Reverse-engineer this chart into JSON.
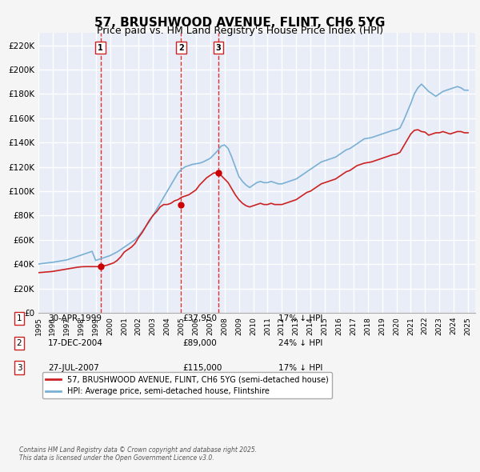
{
  "title": "57, BRUSHWOOD AVENUE, FLINT, CH6 5YG",
  "subtitle": "Price paid vs. HM Land Registry's House Price Index (HPI)",
  "title_fontsize": 11,
  "subtitle_fontsize": 9,
  "xlim": [
    1995.0,
    2025.5
  ],
  "ylim": [
    0,
    230000
  ],
  "yticks": [
    0,
    20000,
    40000,
    60000,
    80000,
    100000,
    120000,
    140000,
    160000,
    180000,
    200000,
    220000
  ],
  "ytick_labels": [
    "£0",
    "£20K",
    "£40K",
    "£60K",
    "£80K",
    "£100K",
    "£120K",
    "£140K",
    "£160K",
    "£180K",
    "£200K",
    "£220K"
  ],
  "xticks": [
    1995,
    1996,
    1997,
    1998,
    1999,
    2000,
    2001,
    2002,
    2003,
    2004,
    2005,
    2006,
    2007,
    2008,
    2009,
    2010,
    2011,
    2012,
    2013,
    2014,
    2015,
    2016,
    2017,
    2018,
    2019,
    2020,
    2021,
    2022,
    2023,
    2024,
    2025
  ],
  "background_color": "#f0f4ff",
  "plot_bg_color": "#e8edf8",
  "grid_color": "#ffffff",
  "hpi_color": "#7ab0d4",
  "price_color": "#cc2222",
  "sale_marker_color": "#cc0000",
  "vline_color": "#e03030",
  "legend_label_price": "57, BRUSHWOOD AVENUE, FLINT, CH6 5YG (semi-detached house)",
  "legend_label_hpi": "HPI: Average price, semi-detached house, Flintshire",
  "sales": [
    {
      "num": 1,
      "year": 1999.33,
      "price": 37950,
      "label": "1"
    },
    {
      "num": 2,
      "year": 2004.96,
      "price": 89000,
      "label": "2"
    },
    {
      "num": 3,
      "year": 2007.56,
      "price": 115000,
      "label": "3"
    }
  ],
  "table_rows": [
    {
      "num": "1",
      "date": "30-APR-1999",
      "price": "£37,950",
      "hpi": "17% ↓ HPI"
    },
    {
      "num": "2",
      "date": "17-DEC-2004",
      "price": "£89,000",
      "hpi": "24% ↓ HPI"
    },
    {
      "num": "3",
      "date": "27-JUL-2007",
      "price": "£115,000",
      "hpi": "17% ↓ HPI"
    }
  ],
  "footer": "Contains HM Land Registry data © Crown copyright and database right 2025.\nThis data is licensed under the Open Government Licence v3.0.",
  "hpi_data_x": [
    1995.0,
    1995.25,
    1995.5,
    1995.75,
    1996.0,
    1996.25,
    1996.5,
    1996.75,
    1997.0,
    1997.25,
    1997.5,
    1997.75,
    1998.0,
    1998.25,
    1998.5,
    1998.75,
    1999.0,
    1999.25,
    1999.5,
    1999.75,
    2000.0,
    2000.25,
    2000.5,
    2000.75,
    2001.0,
    2001.25,
    2001.5,
    2001.75,
    2002.0,
    2002.25,
    2002.5,
    2002.75,
    2003.0,
    2003.25,
    2003.5,
    2003.75,
    2004.0,
    2004.25,
    2004.5,
    2004.75,
    2005.0,
    2005.25,
    2005.5,
    2005.75,
    2006.0,
    2006.25,
    2006.5,
    2006.75,
    2007.0,
    2007.25,
    2007.5,
    2007.75,
    2008.0,
    2008.25,
    2008.5,
    2008.75,
    2009.0,
    2009.25,
    2009.5,
    2009.75,
    2010.0,
    2010.25,
    2010.5,
    2010.75,
    2011.0,
    2011.25,
    2011.5,
    2011.75,
    2012.0,
    2012.25,
    2012.5,
    2012.75,
    2013.0,
    2013.25,
    2013.5,
    2013.75,
    2014.0,
    2014.25,
    2014.5,
    2014.75,
    2015.0,
    2015.25,
    2015.5,
    2015.75,
    2016.0,
    2016.25,
    2016.5,
    2016.75,
    2017.0,
    2017.25,
    2017.5,
    2017.75,
    2018.0,
    2018.25,
    2018.5,
    2018.75,
    2019.0,
    2019.25,
    2019.5,
    2019.75,
    2020.0,
    2020.25,
    2020.5,
    2020.75,
    2021.0,
    2021.25,
    2021.5,
    2021.75,
    2022.0,
    2022.25,
    2022.5,
    2022.75,
    2023.0,
    2023.25,
    2023.5,
    2023.75,
    2024.0,
    2024.25,
    2024.5,
    2024.75,
    2025.0
  ],
  "hpi_data_y": [
    40000,
    40500,
    40800,
    41200,
    41500,
    42000,
    42500,
    43000,
    43500,
    44500,
    45500,
    46500,
    47500,
    48500,
    49500,
    50500,
    43000,
    44000,
    45000,
    46000,
    47000,
    48500,
    50000,
    52000,
    54000,
    56000,
    58000,
    60000,
    63000,
    67000,
    71000,
    75000,
    80000,
    85000,
    90000,
    95000,
    100000,
    105000,
    110000,
    115000,
    118000,
    120000,
    121000,
    122000,
    122500,
    123000,
    124000,
    125500,
    127000,
    130000,
    133000,
    137000,
    138000,
    135000,
    128000,
    120000,
    112000,
    108000,
    105000,
    103000,
    105000,
    107000,
    108000,
    107000,
    107000,
    108000,
    107000,
    106000,
    106000,
    107000,
    108000,
    109000,
    110000,
    112000,
    114000,
    116000,
    118000,
    120000,
    122000,
    124000,
    125000,
    126000,
    127000,
    128000,
    130000,
    132000,
    134000,
    135000,
    137000,
    139000,
    141000,
    143000,
    143500,
    144000,
    145000,
    146000,
    147000,
    148000,
    149000,
    150000,
    150500,
    152000,
    158000,
    165000,
    172000,
    180000,
    185000,
    188000,
    185000,
    182000,
    180000,
    178000,
    180000,
    182000,
    183000,
    184000,
    185000,
    186000,
    185000,
    183000,
    183000
  ],
  "price_data_x": [
    1995.0,
    1995.25,
    1995.5,
    1995.75,
    1996.0,
    1996.25,
    1996.5,
    1996.75,
    1997.0,
    1997.25,
    1997.5,
    1997.75,
    1998.0,
    1998.25,
    1998.5,
    1998.75,
    1999.0,
    1999.25,
    1999.5,
    1999.75,
    2000.0,
    2000.25,
    2000.5,
    2000.75,
    2001.0,
    2001.25,
    2001.5,
    2001.75,
    2002.0,
    2002.25,
    2002.5,
    2002.75,
    2003.0,
    2003.25,
    2003.5,
    2003.75,
    2004.0,
    2004.25,
    2004.5,
    2004.75,
    2005.0,
    2005.25,
    2005.5,
    2005.75,
    2006.0,
    2006.25,
    2006.5,
    2006.75,
    2007.0,
    2007.25,
    2007.5,
    2007.75,
    2008.0,
    2008.25,
    2008.5,
    2008.75,
    2009.0,
    2009.25,
    2009.5,
    2009.75,
    2010.0,
    2010.25,
    2010.5,
    2010.75,
    2011.0,
    2011.25,
    2011.5,
    2011.75,
    2012.0,
    2012.25,
    2012.5,
    2012.75,
    2013.0,
    2013.25,
    2013.5,
    2013.75,
    2014.0,
    2014.25,
    2014.5,
    2014.75,
    2015.0,
    2015.25,
    2015.5,
    2015.75,
    2016.0,
    2016.25,
    2016.5,
    2016.75,
    2017.0,
    2017.25,
    2017.5,
    2017.75,
    2018.0,
    2018.25,
    2018.5,
    2018.75,
    2019.0,
    2019.25,
    2019.5,
    2019.75,
    2020.0,
    2020.25,
    2020.5,
    2020.75,
    2021.0,
    2021.25,
    2021.5,
    2021.75,
    2022.0,
    2022.25,
    2022.5,
    2022.75,
    2023.0,
    2023.25,
    2023.5,
    2023.75,
    2024.0,
    2024.25,
    2024.5,
    2024.75,
    2025.0
  ],
  "price_data_y": [
    33000,
    33200,
    33500,
    33700,
    34000,
    34500,
    35000,
    35500,
    36000,
    36500,
    37000,
    37500,
    37800,
    37950,
    37950,
    37950,
    37950,
    37950,
    38500,
    39000,
    40000,
    41000,
    43000,
    46000,
    50000,
    52000,
    54000,
    57000,
    62000,
    66000,
    71000,
    76000,
    80000,
    83000,
    87000,
    89000,
    89000,
    90000,
    92000,
    93000,
    95000,
    96000,
    97000,
    99000,
    101000,
    105000,
    108000,
    111000,
    113000,
    115000,
    115000,
    113000,
    110000,
    107000,
    102000,
    97000,
    93000,
    90000,
    88000,
    87000,
    88000,
    89000,
    90000,
    89000,
    89000,
    90000,
    89000,
    89000,
    89000,
    90000,
    91000,
    92000,
    93000,
    95000,
    97000,
    99000,
    100000,
    102000,
    104000,
    106000,
    107000,
    108000,
    109000,
    110000,
    112000,
    114000,
    116000,
    117000,
    119000,
    121000,
    122000,
    123000,
    123500,
    124000,
    125000,
    126000,
    127000,
    128000,
    129000,
    130000,
    130500,
    132000,
    137000,
    142000,
    147000,
    150000,
    150500,
    149000,
    148500,
    146000,
    147000,
    148000,
    148000,
    149000,
    148000,
    147000,
    148000,
    149000,
    149000,
    148000,
    148000
  ]
}
